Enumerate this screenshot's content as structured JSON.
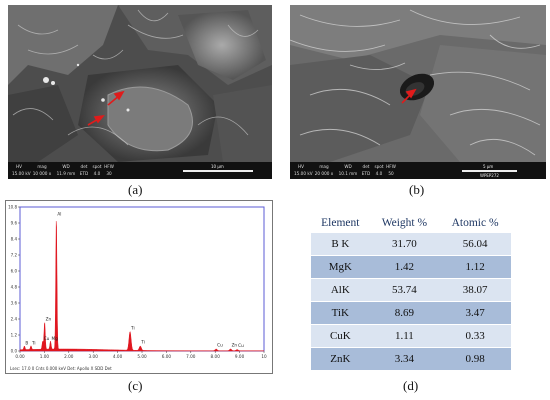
{
  "panels": {
    "a": {
      "caption": "(a)",
      "databar": {
        "headers": [
          "HV",
          "mag",
          "WD",
          "det",
          "spot",
          "HFW"
        ],
        "values": [
          "15.00 kV",
          "10 000 x",
          "11.9 mm",
          "ETD",
          "4.0",
          "30"
        ],
        "scale_label": "10 μm"
      }
    },
    "b": {
      "caption": "(b)",
      "databar": {
        "headers": [
          "HV",
          "mag",
          "WD",
          "det",
          "spot",
          "HFW"
        ],
        "values": [
          "15.00 kV",
          "20 000 x",
          "10.1 mm",
          "ETD",
          "4.0",
          "50"
        ],
        "scale_label": "5 μm",
        "tag": "WPEP272"
      }
    },
    "c": {
      "caption": "(c)",
      "footer": "Lsec: 17.0   0 Cnts  0.000 keV  Det: Apollo X SDD Det"
    },
    "d": {
      "caption": "(d)"
    }
  },
  "composition_table": {
    "headers": [
      "Element",
      "Weight %",
      "Atomic %"
    ],
    "rows": [
      {
        "element": "B K",
        "weight": "31.70",
        "atomic": "56.04"
      },
      {
        "element": "MgK",
        "weight": "1.42",
        "atomic": "1.12"
      },
      {
        "element": "AlK",
        "weight": "53.74",
        "atomic": "38.07"
      },
      {
        "element": "TiK",
        "weight": "8.69",
        "atomic": "3.47"
      },
      {
        "element": "CuK",
        "weight": "1.11",
        "atomic": "0.33"
      },
      {
        "element": "ZnK",
        "weight": "3.34",
        "atomic": "0.98"
      }
    ]
  },
  "chart_data": {
    "type": "line",
    "title": "",
    "xlabel": "",
    "ylabel": "",
    "xlim": [
      0,
      10
    ],
    "ylim": [
      0,
      10
    ],
    "x_ticks": [
      "0.00",
      "1.00",
      "2.00",
      "3.00",
      "4.00",
      "5.00",
      "6.00",
      "7.00",
      "8.00",
      "9.00",
      "10"
    ],
    "y_ticks": [
      "0.0",
      "1.2",
      "2.4",
      "3.6",
      "4.8",
      "6.0",
      "7.2",
      "8.4",
      "9.6",
      "10.8"
    ],
    "peaks": [
      {
        "label": "B",
        "x": 0.18,
        "y": 0.25
      },
      {
        "label": "Ti",
        "x": 0.45,
        "y": 0.25
      },
      {
        "label": "Cu",
        "x": 0.93,
        "y": 0.55
      },
      {
        "label": "Zn",
        "x": 1.01,
        "y": 1.9
      },
      {
        "label": "Mg",
        "x": 1.25,
        "y": 0.55
      },
      {
        "label": "Al",
        "x": 1.49,
        "y": 9.2
      },
      {
        "label": "Ti",
        "x": 4.51,
        "y": 1.3
      },
      {
        "label": "Ti",
        "x": 4.93,
        "y": 0.3
      },
      {
        "label": "Cu",
        "x": 8.04,
        "y": 0.12
      },
      {
        "label": "Zn",
        "x": 8.63,
        "y": 0.12
      },
      {
        "label": "Cu",
        "x": 8.9,
        "y": 0.08
      }
    ],
    "colors": {
      "fill": "#e0161f",
      "axis": "#5b5bd6"
    }
  }
}
